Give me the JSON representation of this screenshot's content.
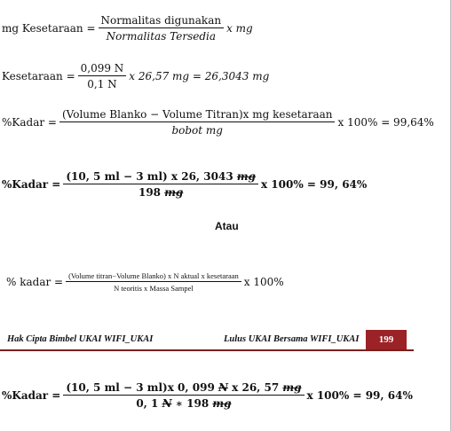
{
  "eq1": {
    "lhs": "mg Kesetaraan =",
    "num": "Normalitas digunakan",
    "den": "Normalitas Tersedia",
    "rhs": "x mg"
  },
  "eq2": {
    "lhs": "Kesetaraan =",
    "num": "0,099 N",
    "den": "0,1 N",
    "rhs": "x 26,57 mg = 26,3043 mg"
  },
  "eq3": {
    "lhs": "%Kadar =",
    "num": "(Volume Blanko − Volume Titran)x mg kesetaraan",
    "den": "bobot mg",
    "rhs": "x 100% = 99,64%"
  },
  "eq4": {
    "lhs": "%Kadar =",
    "num_a": "(10, 5 ml − 3 ml) x 26, 3043 ",
    "num_b": "mg",
    "den_a": "198 ",
    "den_b": "mg",
    "rhs": "x 100% = 99, 64%"
  },
  "atau": "Atau",
  "eq5": {
    "lhs": "% kadar =",
    "num": "(Volume titran−Volume Blanko) x N aktual x kesetaraan",
    "den": "N teoritis x Massa Sampel",
    "rhs": "x 100%"
  },
  "footer": {
    "left": "Hak Cipta Bimbel UKAI WIFI_UKAI",
    "mid": "Lulus UKAI Bersama WIFI_UKAI",
    "page": "199"
  },
  "eq6": {
    "lhs": "%Kadar =",
    "num_a": "(10, 5 ml − 3 ml)x 0, 099 ",
    "num_b": "N",
    "num_c": " x 26, 57 ",
    "num_d": "mg",
    "den_a": "0, 1 ",
    "den_b": "N",
    "den_c": " ∗ 198 ",
    "den_d": "mg",
    "rhs": "x 100% = 99, 64%"
  }
}
